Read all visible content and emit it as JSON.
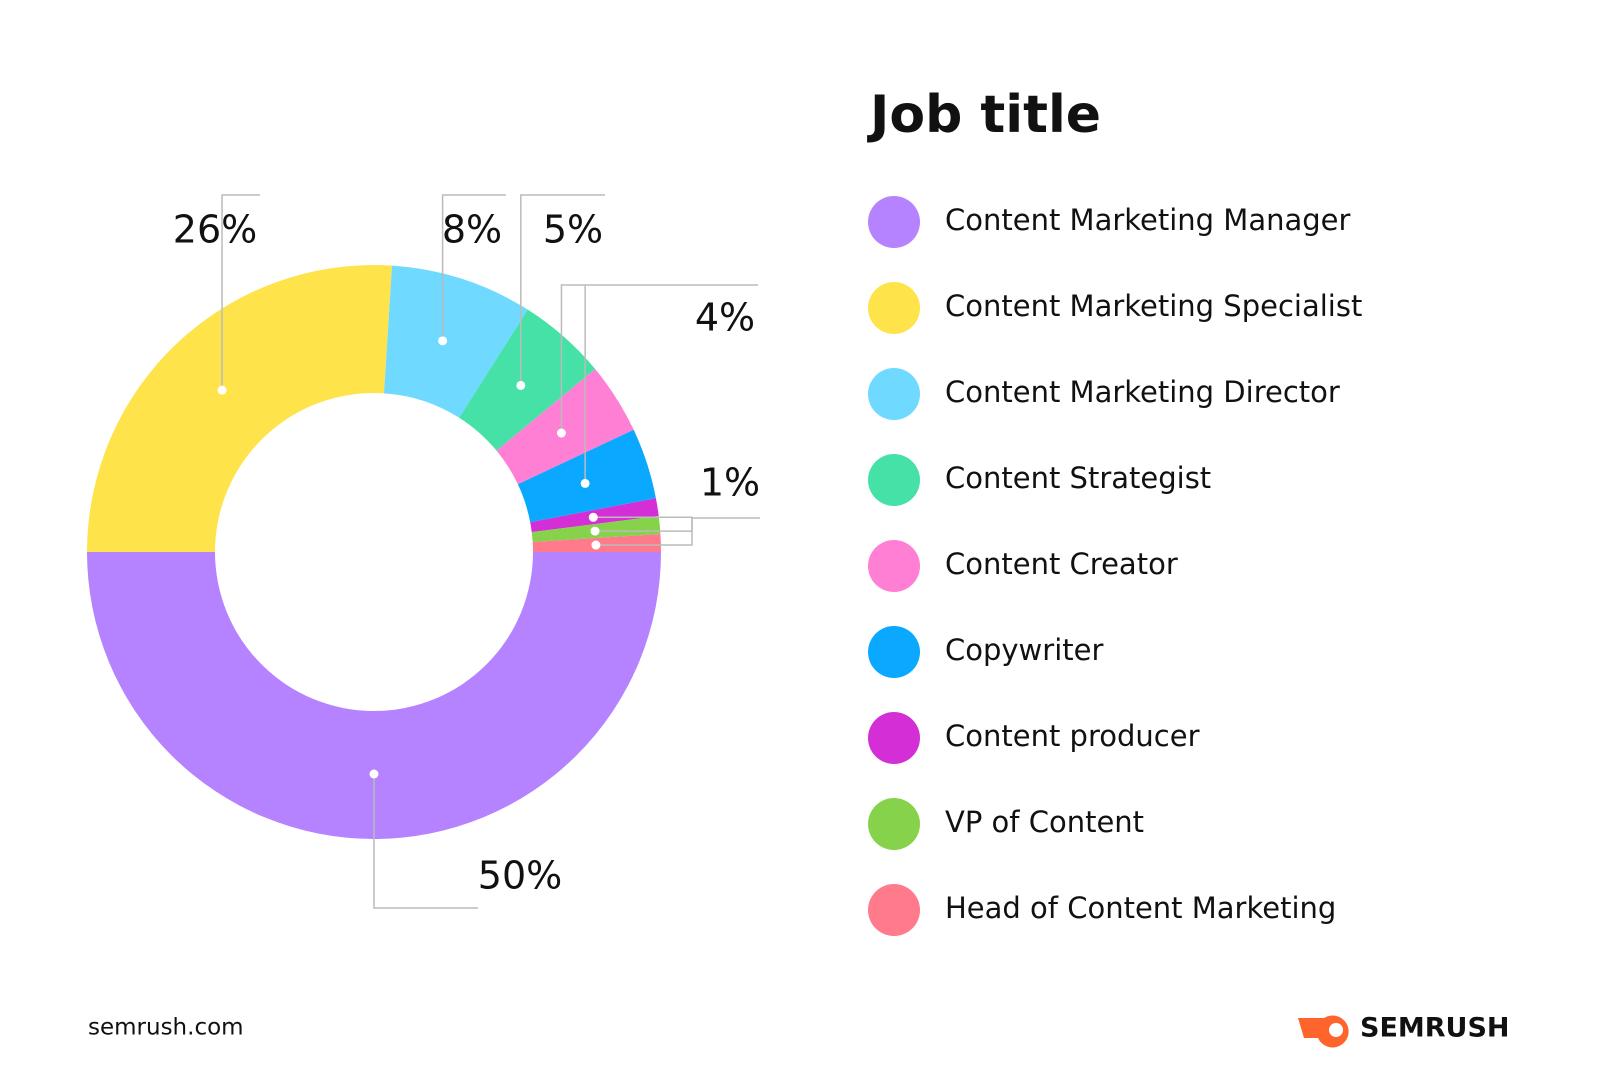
{
  "chart_data": {
    "type": "pie",
    "donut": true,
    "title": "Job title",
    "categories": [
      "Content Marketing Manager",
      "Content Marketing Specialist",
      "Content Marketing Director",
      "Content Strategist",
      "Content Creator",
      "Copywriter",
      "Content producer",
      "VP of Content",
      "Head of Content Marketing"
    ],
    "values": [
      50,
      26,
      8,
      5,
      4,
      4,
      1,
      1,
      1
    ],
    "value_labels": [
      "50%",
      "26%",
      "8%",
      "5%",
      "4%",
      null,
      "1%",
      null,
      null
    ],
    "colors": [
      "#b583ff",
      "#ffe34a",
      "#6fd9ff",
      "#45e1a6",
      "#ff7fd4",
      "#0aa8ff",
      "#d42fd6",
      "#86d24a",
      "#ff7a8a"
    ]
  },
  "footer": {
    "source": "semrush.com",
    "brand": "SEMRUSH"
  }
}
